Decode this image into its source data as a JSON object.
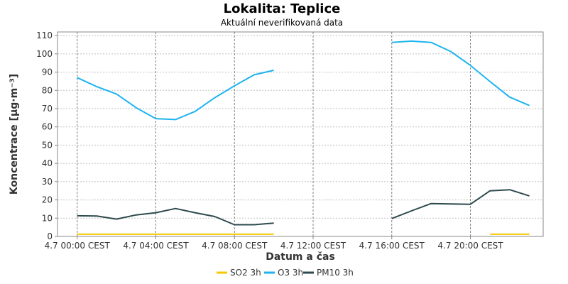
{
  "chart_data": {
    "type": "line",
    "title": "Lokalita: Teplice",
    "subtitle": "Aktuální neverifikovaná data",
    "xlabel": "Datum a čas",
    "ylabel": "Koncentrace [µg·m⁻³]",
    "ylim": [
      0,
      112
    ],
    "y_ticks": [
      0,
      10,
      20,
      30,
      40,
      50,
      60,
      70,
      80,
      90,
      100,
      110
    ],
    "xlim_hours": [
      -1,
      23.7
    ],
    "x_ticks": [
      {
        "hour": 0,
        "label": "4.7 00:00 CEST"
      },
      {
        "hour": 4,
        "label": "4.7 04:00 CEST"
      },
      {
        "hour": 8,
        "label": "4.7 08:00 CEST"
      },
      {
        "hour": 12,
        "label": "4.7 12:00 CEST"
      },
      {
        "hour": 16,
        "label": "4.7 16:00 CEST"
      },
      {
        "hour": 20,
        "label": "4.7 20:00 CEST"
      }
    ],
    "grid": true,
    "legend_position": "bottom",
    "series": [
      {
        "name": "SO2 3h",
        "color": "#f5c800",
        "segments": [
          [
            [
              0,
              1.2
            ],
            [
              1,
              1.2
            ],
            [
              2,
              1.2
            ],
            [
              3,
              1.2
            ],
            [
              4,
              1.2
            ],
            [
              5,
              1.2
            ],
            [
              6,
              1.2
            ],
            [
              7,
              1.2
            ],
            [
              8,
              1.2
            ],
            [
              9,
              1.2
            ],
            [
              10,
              1.2
            ]
          ],
          [
            [
              21,
              1.2
            ],
            [
              22,
              1.2
            ],
            [
              23,
              1.2
            ]
          ]
        ]
      },
      {
        "name": "O3 3h",
        "color": "#1eb4f0",
        "segments": [
          [
            [
              0,
              87
            ],
            [
              1,
              82
            ],
            [
              2,
              78
            ],
            [
              3,
              70.5
            ],
            [
              4,
              64.5
            ],
            [
              5,
              64
            ],
            [
              6,
              68.5
            ],
            [
              7,
              76
            ],
            [
              8,
              82.5
            ],
            [
              9,
              88.5
            ],
            [
              10,
              91
            ]
          ],
          [
            [
              16,
              106.3
            ],
            [
              17,
              107
            ],
            [
              18,
              106.3
            ],
            [
              19,
              101.3
            ],
            [
              20,
              93.7
            ],
            [
              21,
              84.8
            ],
            [
              22,
              76.3
            ],
            [
              23,
              71.7
            ]
          ]
        ]
      },
      {
        "name": "PM10 3h",
        "color": "#2e4a4e",
        "segments": [
          [
            [
              0,
              11.3
            ],
            [
              1,
              11.2
            ],
            [
              2,
              9.5
            ],
            [
              3,
              11.8
            ],
            [
              4,
              13
            ],
            [
              5,
              15.3
            ],
            [
              6,
              13
            ],
            [
              7,
              10.9
            ],
            [
              8,
              6.4
            ],
            [
              9,
              6.4
            ],
            [
              10,
              7.3
            ]
          ],
          [
            [
              16,
              9.8
            ],
            [
              17,
              14
            ],
            [
              18,
              18
            ],
            [
              19,
              17.8
            ],
            [
              20,
              17.6
            ],
            [
              21,
              25
            ],
            [
              22,
              25.6
            ],
            [
              23,
              22.2
            ]
          ]
        ]
      }
    ]
  }
}
